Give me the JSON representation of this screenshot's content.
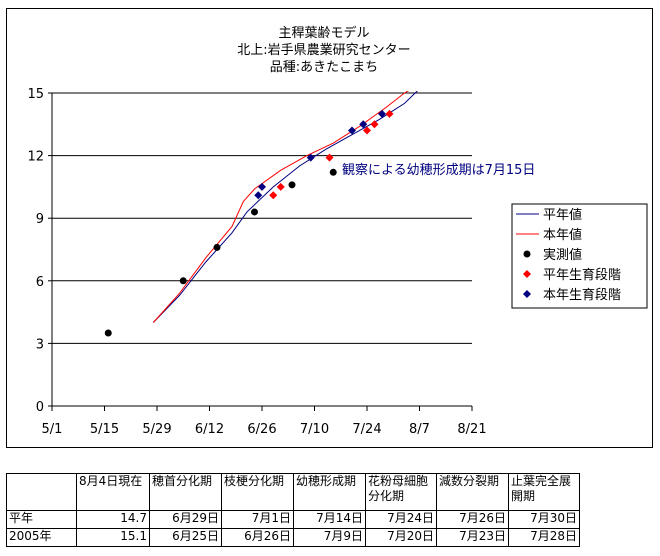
{
  "chart_data": {
    "type": "line",
    "title": [
      "主稈葉齢モデル",
      "北上:岩手県農業研究センター",
      "品種:あきたこまち"
    ],
    "x_ticks": [
      "5/1",
      "5/15",
      "5/29",
      "6/12",
      "6/26",
      "7/10",
      "7/24",
      "8/7",
      "8/21"
    ],
    "y_ticks": [
      "0",
      "3",
      "6",
      "9",
      "12",
      "15"
    ],
    "xlim": [
      "5/1",
      "8/21"
    ],
    "ylim": [
      0,
      15
    ],
    "grid": "horizontal",
    "legend_position": "right",
    "annotation": "観察による幼穂形成期は7月15日",
    "series": [
      {
        "name": "平年値",
        "kind": "line",
        "color": "#000080",
        "points": [
          [
            "5/28",
            4.0
          ],
          [
            "6/4",
            5.3
          ],
          [
            "6/11",
            6.9
          ],
          [
            "6/18",
            8.3
          ],
          [
            "6/22",
            9.3
          ],
          [
            "6/29",
            10.5
          ],
          [
            "7/6",
            11.5
          ],
          [
            "7/13",
            12.3
          ],
          [
            "7/20",
            13.0
          ],
          [
            "7/27",
            13.7
          ],
          [
            "8/3",
            14.5
          ],
          [
            "8/7",
            15.2
          ]
        ]
      },
      {
        "name": "本年値",
        "kind": "line",
        "color": "#ff0000",
        "points": [
          [
            "5/28",
            4.0
          ],
          [
            "6/4",
            5.4
          ],
          [
            "6/11",
            7.1
          ],
          [
            "6/18",
            8.6
          ],
          [
            "6/21",
            9.8
          ],
          [
            "6/24",
            10.4
          ],
          [
            "7/1",
            11.3
          ],
          [
            "7/8",
            12.0
          ],
          [
            "7/15",
            12.6
          ],
          [
            "7/22",
            13.4
          ],
          [
            "7/29",
            14.3
          ],
          [
            "8/3",
            15.0
          ],
          [
            "8/5",
            15.2
          ]
        ]
      },
      {
        "name": "実測値",
        "kind": "scatter",
        "marker": "circle",
        "color": "#000000",
        "points": [
          [
            "5/16",
            3.5
          ],
          [
            "6/5",
            6.0
          ],
          [
            "6/14",
            7.6
          ],
          [
            "6/24",
            9.3
          ],
          [
            "7/4",
            10.6
          ],
          [
            "7/15",
            11.2
          ]
        ]
      },
      {
        "name": "平年生育段階",
        "kind": "scatter",
        "marker": "diamond",
        "color": "#ff0000",
        "points": [
          [
            "6/29",
            10.1
          ],
          [
            "7/1",
            10.5
          ],
          [
            "7/14",
            11.9
          ],
          [
            "7/24",
            13.2
          ],
          [
            "7/26",
            13.5
          ],
          [
            "7/30",
            14.0
          ]
        ]
      },
      {
        "name": "本年生育段階",
        "kind": "scatter",
        "marker": "diamond",
        "color": "#000080",
        "points": [
          [
            "6/25",
            10.1
          ],
          [
            "6/26",
            10.5
          ],
          [
            "7/9",
            11.9
          ],
          [
            "7/20",
            13.2
          ],
          [
            "7/23",
            13.5
          ],
          [
            "7/28",
            14.0
          ]
        ]
      }
    ]
  },
  "table": {
    "headers": [
      "",
      "8月4日現在",
      "穂首分化期",
      "枝梗分化期",
      "幼穂形成期",
      "花粉母細胞分化期",
      "減数分裂期",
      "止葉完全展開期"
    ],
    "rows": [
      [
        "平年",
        "14.7",
        "6月29日",
        "7月1日",
        "7月14日",
        "7月24日",
        "7月26日",
        "7月30日"
      ],
      [
        "2005年",
        "15.1",
        "6月25日",
        "6月26日",
        "7月9日",
        "7月20日",
        "7月23日",
        "7月28日"
      ]
    ]
  }
}
